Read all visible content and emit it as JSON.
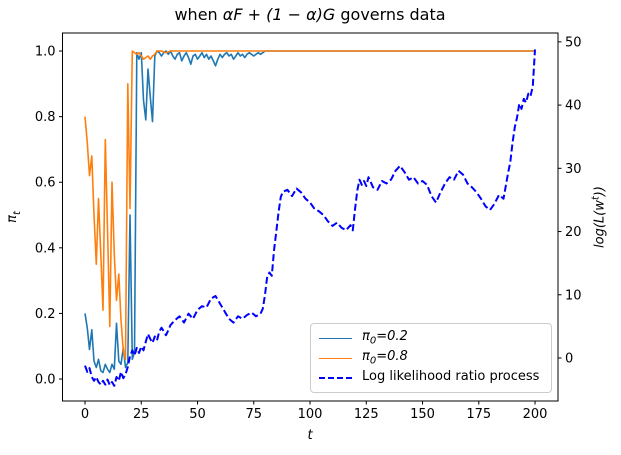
{
  "title": {
    "prefix": "when ",
    "math": "αF + (1 − α)G",
    "suffix": " governs data"
  },
  "ylabel_left": {
    "base": "π",
    "sub": "t"
  },
  "ylabel_right": {
    "pre": "log(L(w",
    "sup": "t",
    "post": "))"
  },
  "legend": {
    "position": "lower right",
    "entries": [
      {
        "pre": "π",
        "sub": "0",
        "post": "=0.2"
      },
      {
        "pre": "π",
        "sub": "0",
        "post": "=0.8"
      },
      {
        "pre": "Log likelihood ratio process",
        "sub": "",
        "post": ""
      }
    ]
  },
  "chart_data": {
    "type": "line",
    "title": "when αF + (1 − α)G governs data",
    "xlabel": "t",
    "ylabel_left": "π_t",
    "ylabel_right": "log(L(w^t))",
    "xlim": [
      -10,
      210.2
    ],
    "ylim_left": [
      -0.067,
      1.055
    ],
    "ylim_right": [
      -6.8,
      51.4
    ],
    "grid": false,
    "x_ticks": {
      "values": [
        0,
        25,
        50,
        75,
        100,
        125,
        150,
        175,
        200
      ],
      "labels": [
        "0",
        "25",
        "50",
        "75",
        "100",
        "125",
        "150",
        "175",
        "200"
      ]
    },
    "y_left_ticks": {
      "values": [
        0.0,
        0.2,
        0.4,
        0.6,
        0.8,
        1.0
      ],
      "labels": [
        "0.0",
        "0.2",
        "0.4",
        "0.6",
        "0.8",
        "1.0"
      ]
    },
    "y_right_ticks": {
      "values": [
        0,
        10,
        20,
        30,
        40,
        50
      ],
      "labels": [
        "0",
        "10",
        "20",
        "30",
        "40",
        "50"
      ]
    },
    "colors": {
      "pi02": "#1f77b4",
      "pi08": "#ff7f0e",
      "llr": "#0000ff"
    },
    "series": [
      {
        "name": "π₀=0.2",
        "axis": "left",
        "color": "#1f77b4",
        "style": "solid",
        "width": 1.6,
        "points": [
          [
            0,
            0.2
          ],
          [
            1,
            0.155
          ],
          [
            2,
            0.09
          ],
          [
            3,
            0.15
          ],
          [
            4,
            0.055
          ],
          [
            5,
            0.035
          ],
          [
            6,
            0.06
          ],
          [
            7,
            0.025
          ],
          [
            8,
            0.02
          ],
          [
            9,
            0.045
          ],
          [
            10,
            0.03
          ],
          [
            11,
            0.02
          ],
          [
            12,
            0.045
          ],
          [
            13,
            0.03
          ],
          [
            14,
            0.17
          ],
          [
            15,
            0.055
          ],
          [
            16,
            0.045
          ],
          [
            17,
            0.095
          ],
          [
            18,
            0.035
          ],
          [
            19,
            0.05
          ],
          [
            20,
            0.5
          ],
          [
            21,
            0.06
          ],
          [
            22,
            0.08
          ],
          [
            23,
            0.995
          ],
          [
            24,
            0.975
          ],
          [
            25,
            0.995
          ],
          [
            26,
            0.85
          ],
          [
            27,
            0.79
          ],
          [
            28,
            0.945
          ],
          [
            29,
            0.86
          ],
          [
            30,
            0.785
          ],
          [
            31,
            0.985
          ],
          [
            32,
            1.0
          ],
          [
            33,
            0.995
          ],
          [
            34,
            0.985
          ],
          [
            35,
            0.995
          ],
          [
            36,
            1.0
          ],
          [
            37,
            0.99
          ],
          [
            38,
            1.0
          ],
          [
            39,
            0.985
          ],
          [
            40,
            0.975
          ],
          [
            41,
            0.99
          ],
          [
            42,
            0.995
          ],
          [
            43,
            0.97
          ],
          [
            44,
            0.985
          ],
          [
            45,
            0.995
          ],
          [
            46,
            0.98
          ],
          [
            47,
            0.96
          ],
          [
            48,
            0.985
          ],
          [
            49,
            0.99
          ],
          [
            50,
            0.975
          ],
          [
            51,
            0.985
          ],
          [
            52,
            0.995
          ],
          [
            53,
            0.98
          ],
          [
            54,
            0.99
          ],
          [
            55,
            0.975
          ],
          [
            56,
            0.985
          ],
          [
            57,
            0.97
          ],
          [
            58,
            0.955
          ],
          [
            59,
            0.975
          ],
          [
            60,
            0.99
          ],
          [
            61,
            0.98
          ],
          [
            62,
            0.99
          ],
          [
            63,
            0.995
          ],
          [
            64,
            0.985
          ],
          [
            65,
            0.99
          ],
          [
            66,
            0.975
          ],
          [
            67,
            0.985
          ],
          [
            68,
            0.995
          ],
          [
            69,
            0.985
          ],
          [
            70,
            0.99
          ],
          [
            71,
            0.98
          ],
          [
            72,
            0.99
          ],
          [
            73,
            0.995
          ],
          [
            74,
            0.99
          ],
          [
            75,
            0.985
          ],
          [
            76,
            0.99
          ],
          [
            77,
            0.995
          ],
          [
            78,
            0.99
          ],
          [
            79,
            0.995
          ],
          [
            80,
            1.0
          ],
          [
            90,
            1.0
          ],
          [
            100,
            1.0
          ],
          [
            110,
            1.0
          ],
          [
            120,
            1.0
          ],
          [
            130,
            1.0
          ],
          [
            140,
            1.0
          ],
          [
            150,
            1.0
          ],
          [
            160,
            1.0
          ],
          [
            170,
            1.0
          ],
          [
            180,
            1.0
          ],
          [
            190,
            1.0
          ],
          [
            200,
            1.0
          ]
        ]
      },
      {
        "name": "π₀=0.8",
        "axis": "left",
        "color": "#ff7f0e",
        "style": "solid",
        "width": 1.6,
        "points": [
          [
            0,
            0.8
          ],
          [
            1,
            0.72
          ],
          [
            2,
            0.62
          ],
          [
            3,
            0.68
          ],
          [
            4,
            0.5
          ],
          [
            5,
            0.35
          ],
          [
            6,
            0.55
          ],
          [
            7,
            0.38
          ],
          [
            8,
            0.21
          ],
          [
            9,
            0.73
          ],
          [
            10,
            0.46
          ],
          [
            11,
            0.16
          ],
          [
            12,
            0.6
          ],
          [
            13,
            0.38
          ],
          [
            14,
            0.24
          ],
          [
            15,
            0.32
          ],
          [
            16,
            0.18
          ],
          [
            17,
            0.085
          ],
          [
            18,
            0.06
          ],
          [
            19,
            0.9
          ],
          [
            20,
            0.52
          ],
          [
            21,
            1.0
          ],
          [
            22,
            0.995
          ],
          [
            23,
            0.99
          ],
          [
            24,
            0.995
          ],
          [
            25,
            0.985
          ],
          [
            26,
            0.975
          ],
          [
            27,
            0.98
          ],
          [
            28,
            0.985
          ],
          [
            29,
            0.975
          ],
          [
            30,
            0.985
          ],
          [
            31,
            0.99
          ],
          [
            32,
            1.0
          ],
          [
            34,
            1.0
          ],
          [
            36,
            0.995
          ],
          [
            38,
            1.0
          ],
          [
            45,
            1.0
          ],
          [
            60,
            1.0
          ],
          [
            80,
            1.0
          ],
          [
            100,
            1.0
          ],
          [
            120,
            1.0
          ],
          [
            140,
            1.0
          ],
          [
            160,
            1.0
          ],
          [
            180,
            1.0
          ],
          [
            200,
            1.0
          ]
        ]
      },
      {
        "name": "Log likelihood ratio process",
        "axis": "right",
        "color": "#0000ff",
        "style": "dashed",
        "width": 2,
        "points": [
          [
            0,
            -1.2
          ],
          [
            1,
            -2.2
          ],
          [
            2,
            -1.6
          ],
          [
            3,
            -3.0
          ],
          [
            4,
            -3.6
          ],
          [
            5,
            -3.0
          ],
          [
            6,
            -3.8
          ],
          [
            7,
            -4.2
          ],
          [
            8,
            -3.6
          ],
          [
            9,
            -4.2
          ],
          [
            10,
            -3.4
          ],
          [
            11,
            -4.3
          ],
          [
            12,
            -3.8
          ],
          [
            13,
            -4.4
          ],
          [
            14,
            -3.0
          ],
          [
            15,
            -3.6
          ],
          [
            16,
            -2.2
          ],
          [
            17,
            -3.2
          ],
          [
            18,
            -2.6
          ],
          [
            19,
            -1.4
          ],
          [
            20,
            0.3
          ],
          [
            21,
            1.2
          ],
          [
            22,
            0.4
          ],
          [
            23,
            1.6
          ],
          [
            24,
            0.8
          ],
          [
            25,
            1.8
          ],
          [
            26,
            1.2
          ],
          [
            27,
            2.6
          ],
          [
            28,
            3.8
          ],
          [
            29,
            3.0
          ],
          [
            30,
            2.4
          ],
          [
            31,
            3.4
          ],
          [
            32,
            2.8
          ],
          [
            33,
            4.2
          ],
          [
            34,
            4.8
          ],
          [
            35,
            4.2
          ],
          [
            36,
            3.6
          ],
          [
            37,
            4.4
          ],
          [
            38,
            5.2
          ],
          [
            40,
            6.0
          ],
          [
            42,
            6.6
          ],
          [
            44,
            5.6
          ],
          [
            46,
            7.0
          ],
          [
            48,
            6.2
          ],
          [
            50,
            7.6
          ],
          [
            52,
            8.2
          ],
          [
            54,
            8.0
          ],
          [
            56,
            9.4
          ],
          [
            58,
            9.8
          ],
          [
            60,
            8.6
          ],
          [
            62,
            7.4
          ],
          [
            64,
            6.2
          ],
          [
            66,
            5.6
          ],
          [
            68,
            6.6
          ],
          [
            70,
            6.2
          ],
          [
            72,
            6.8
          ],
          [
            74,
            7.2
          ],
          [
            76,
            6.6
          ],
          [
            78,
            7.0
          ],
          [
            79,
            7.8
          ],
          [
            80,
            10.0
          ],
          [
            81,
            13.0
          ],
          [
            82,
            13.5
          ],
          [
            83,
            13.0
          ],
          [
            84,
            17.0
          ],
          [
            85,
            20.0
          ],
          [
            86,
            23.0
          ],
          [
            87,
            25.5
          ],
          [
            88,
            26.3
          ],
          [
            90,
            26.6
          ],
          [
            92,
            25.6
          ],
          [
            94,
            26.8
          ],
          [
            96,
            26.2
          ],
          [
            98,
            25.2
          ],
          [
            100,
            24.6
          ],
          [
            102,
            23.6
          ],
          [
            104,
            23.2
          ],
          [
            106,
            22.6
          ],
          [
            108,
            21.6
          ],
          [
            110,
            20.9
          ],
          [
            112,
            21.4
          ],
          [
            114,
            20.6
          ],
          [
            116,
            20.2
          ],
          [
            118,
            21.0
          ],
          [
            119,
            20.2
          ],
          [
            120,
            23.5
          ],
          [
            121,
            26.5
          ],
          [
            122,
            28.2
          ],
          [
            123,
            27.4
          ],
          [
            124,
            28.0
          ],
          [
            125,
            27.2
          ],
          [
            126,
            28.6
          ],
          [
            127,
            27.8
          ],
          [
            128,
            27.0
          ],
          [
            130,
            26.6
          ],
          [
            132,
            28.0
          ],
          [
            134,
            27.6
          ],
          [
            136,
            28.2
          ],
          [
            138,
            29.6
          ],
          [
            140,
            30.4
          ],
          [
            142,
            29.4
          ],
          [
            144,
            28.2
          ],
          [
            146,
            28.6
          ],
          [
            148,
            27.6
          ],
          [
            150,
            28.0
          ],
          [
            152,
            27.4
          ],
          [
            154,
            25.6
          ],
          [
            156,
            24.6
          ],
          [
            158,
            26.2
          ],
          [
            160,
            27.6
          ],
          [
            162,
            28.6
          ],
          [
            164,
            28.2
          ],
          [
            166,
            29.6
          ],
          [
            168,
            29.0
          ],
          [
            170,
            27.6
          ],
          [
            172,
            27.0
          ],
          [
            174,
            26.2
          ],
          [
            176,
            25.2
          ],
          [
            178,
            24.0
          ],
          [
            180,
            23.4
          ],
          [
            182,
            24.4
          ],
          [
            184,
            25.8
          ],
          [
            186,
            25.2
          ],
          [
            188,
            29.2
          ],
          [
            189,
            31.0
          ],
          [
            190,
            34.0
          ],
          [
            191,
            36.5
          ],
          [
            192,
            38.0
          ],
          [
            193,
            40.2
          ],
          [
            194,
            39.4
          ],
          [
            195,
            41.0
          ],
          [
            196,
            40.4
          ],
          [
            197,
            41.8
          ],
          [
            198,
            41.4
          ],
          [
            199,
            43.0
          ],
          [
            200,
            48.8
          ]
        ]
      }
    ]
  }
}
